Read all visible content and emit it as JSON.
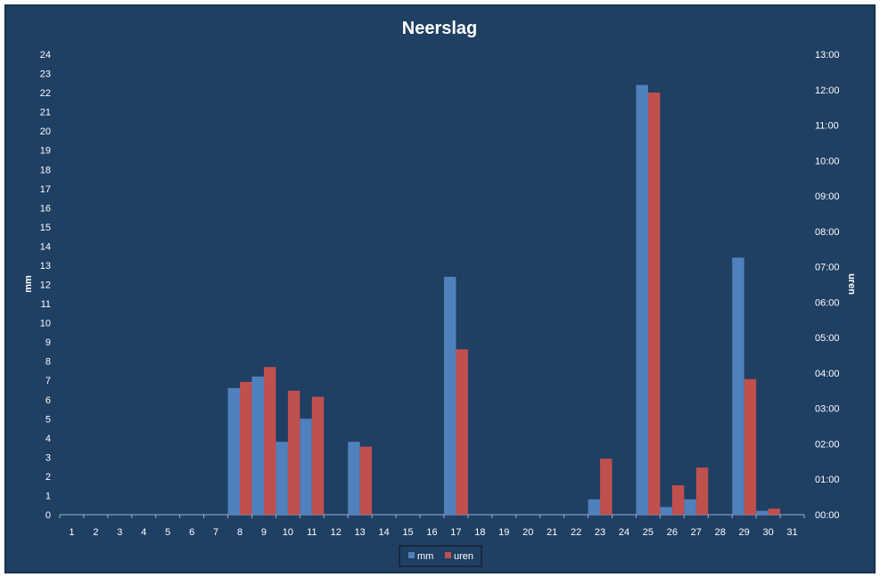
{
  "chart_data": {
    "type": "bar",
    "title": "Neerslag",
    "ylabel": "mm",
    "y2label": "uren",
    "categories": [
      "1",
      "2",
      "3",
      "4",
      "5",
      "6",
      "7",
      "8",
      "9",
      "10",
      "11",
      "12",
      "13",
      "14",
      "15",
      "16",
      "17",
      "18",
      "19",
      "20",
      "21",
      "22",
      "23",
      "24",
      "25",
      "26",
      "27",
      "28",
      "29",
      "30",
      "31"
    ],
    "ylim": [
      0,
      24
    ],
    "y2lim": [
      0,
      13
    ],
    "y_ticks": [
      "0",
      "1",
      "2",
      "3",
      "4",
      "5",
      "6",
      "7",
      "8",
      "9",
      "10",
      "11",
      "12",
      "13",
      "14",
      "15",
      "16",
      "17",
      "18",
      "19",
      "20",
      "21",
      "22",
      "23",
      "24"
    ],
    "y2_ticks": [
      "00:00",
      "01:00",
      "02:00",
      "03:00",
      "04:00",
      "05:00",
      "06:00",
      "07:00",
      "08:00",
      "09:00",
      "10:00",
      "11:00",
      "12:00",
      "13:00"
    ],
    "series": [
      {
        "name": "mm",
        "axis": "left",
        "color": "#4f81bd",
        "values": [
          0,
          0,
          0,
          0,
          0,
          0,
          0,
          6.6,
          7.2,
          3.8,
          5.0,
          0,
          3.8,
          0,
          0,
          0,
          12.4,
          0,
          0,
          0,
          0,
          0,
          0.8,
          0,
          22.4,
          0.4,
          0.8,
          0,
          13.4,
          0.2,
          0
        ]
      },
      {
        "name": "uren",
        "axis": "right",
        "color": "#c0504d",
        "values": [
          0,
          0,
          0,
          0,
          0,
          0,
          0,
          3.75,
          4.17,
          3.5,
          3.33,
          0,
          1.92,
          0,
          0,
          0,
          4.67,
          0,
          0,
          0,
          0,
          0,
          1.58,
          0,
          11.92,
          0.83,
          1.33,
          0,
          3.83,
          0.17,
          0
        ]
      }
    ],
    "legend": {
      "position": "bottom"
    },
    "grid": false
  }
}
